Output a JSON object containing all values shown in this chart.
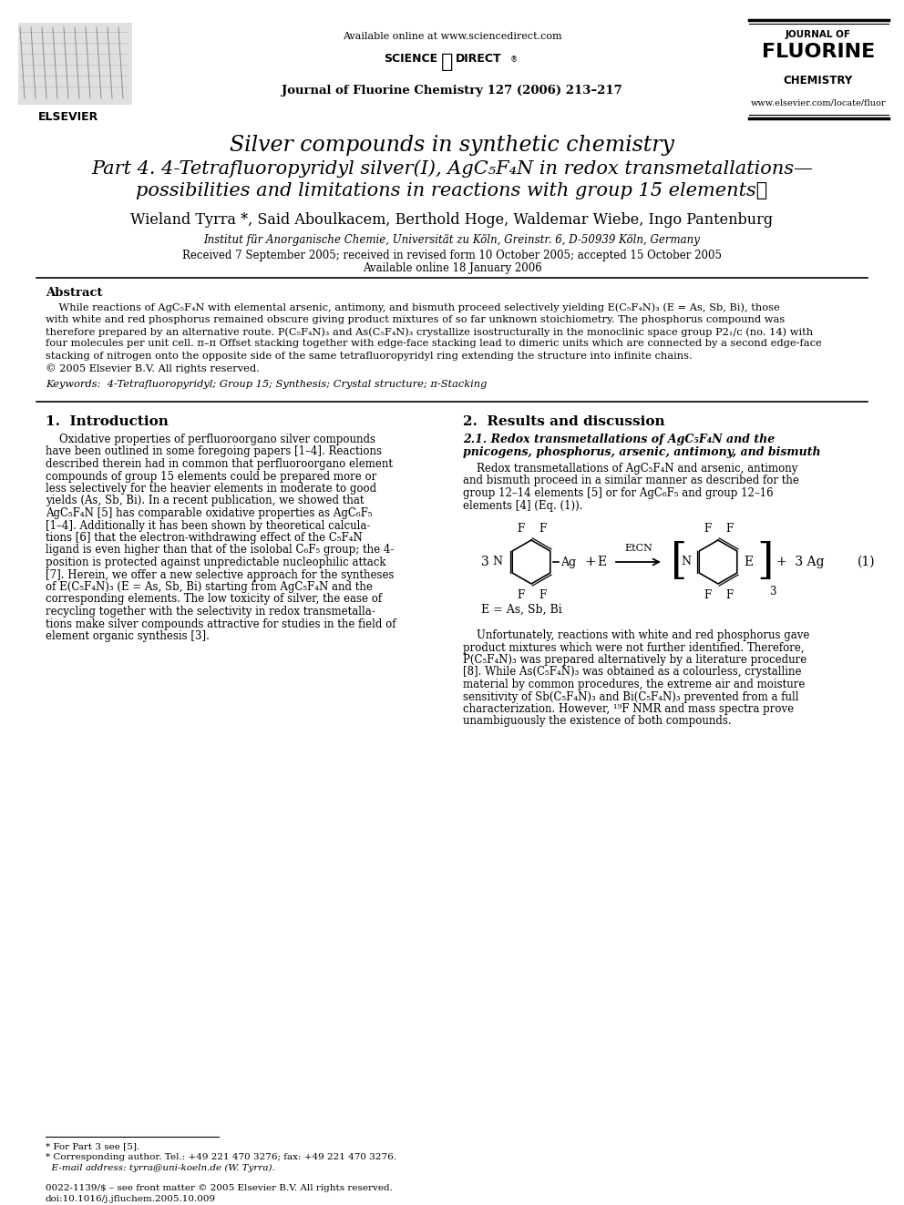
{
  "bg_color": "#ffffff",
  "title_line1": "Silver compounds in synthetic chemistry",
  "title_line2": "Part 4. 4-Tetrafluoropyridyl silver(I), AgC₅F₄N in redox transmetallations—",
  "title_line3": "possibilities and limitations in reactions with group 15 elements☆",
  "authors": "Wieland Tyrra *, Said Aboulkacem, Berthold Hoge, Waldemar Wiebe, Ingo Pantenburg",
  "affiliation": "Institut für Anorganische Chemie, Universität zu Köln, Greinstr. 6, D-50939 Köln, Germany",
  "received": "Received 7 September 2005; received in revised form 10 October 2005; accepted 15 October 2005",
  "available_date": "Available online 18 January 2006",
  "journal_header": "Journal of Fluorine Chemistry 127 (2006) 213–217",
  "available_online": "Available online at www.sciencedirect.com",
  "www_link": "www.elsevier.com/locate/fluor",
  "elsevier_text": "ELSEVIER",
  "abstract_title": "Abstract",
  "abstract_text1": "    While reactions of AgC₅F₄N with elemental arsenic, antimony, and bismuth proceed selectively yielding E(C₅F₄N)₃ (E = As, Sb, Bi), those",
  "abstract_text2": "with white and red phosphorus remained obscure giving product mixtures of so far unknown stoichiometry. The phosphorus compound was",
  "abstract_text3": "therefore prepared by an alternative route. P(C₅F₄N)₃ and As(C₅F₄N)₃ crystallize isostructurally in the monoclinic space group P2₁/c (no. 14) with",
  "abstract_text4": "four molecules per unit cell. π–π Offset stacking together with edge-face stacking lead to dimeric units which are connected by a second edge-face",
  "abstract_text5": "stacking of nitrogen onto the opposite side of the same tetrafluoropyridyl ring extending the structure into infinite chains.",
  "abstract_text6": "© 2005 Elsevier B.V. All rights reserved.",
  "keywords": "Keywords:  4-Tetrafluoropyridyl; Group 15; Synthesis; Crystal structure; π-Stacking",
  "section1_title": "1.  Introduction",
  "sec1_t1": "    Oxidative properties of perfluoroorgano silver compounds",
  "sec1_t2": "have been outlined in some foregoing papers [1–4]. Reactions",
  "sec1_t3": "described therein had in common that perfluoroorgano element",
  "sec1_t4": "compounds of group 15 elements could be prepared more or",
  "sec1_t5": "less selectively for the heavier elements in moderate to good",
  "sec1_t6": "yields (As, Sb, Bi). In a recent publication, we showed that",
  "sec1_t7": "AgC₅F₄N [5] has comparable oxidative properties as AgC₆F₅",
  "sec1_t8": "[1–4]. Additionally it has been shown by theoretical calcula-",
  "sec1_t9": "tions [6] that the electron-withdrawing effect of the C₅F₄N",
  "sec1_t10": "ligand is even higher than that of the isolobal C₆F₅ group; the 4-",
  "sec1_t11": "position is protected against unpredictable nucleophilic attack",
  "sec1_t12": "[7]. Herein, we offer a new selective approach for the syntheses",
  "sec1_t13": "of E(C₅F₄N)₃ (E = As, Sb, Bi) starting from AgC₅F₄N and the",
  "sec1_t14": "corresponding elements. The low toxicity of silver, the ease of",
  "sec1_t15": "recycling together with the selectivity in redox transmetalla-",
  "sec1_t16": "tions make silver compounds attractive for studies in the field of",
  "sec1_t17": "element organic synthesis [3].",
  "section2_title": "2.  Results and discussion",
  "sub21_t1": "2.1. Redox transmetallations of AgC₅F₄N and the",
  "sub21_t2": "pnicogens, phosphorus, arsenic, antimony, and bismuth",
  "sec2_t1": "    Redox transmetallations of AgC₅F₄N and arsenic, antimony",
  "sec2_t2": "and bismuth proceed in a similar manner as described for the",
  "sec2_t3": "group 12–14 elements [5] or for AgC₆F₅ and group 12–16",
  "sec2_t4": "elements [4] (Eq. (1)).",
  "sec2_t5": "    Unfortunately, reactions with white and red phosphorus gave",
  "sec2_t6": "product mixtures which were not further identified. Therefore,",
  "sec2_t7": "P(C₅F₄N)₃ was prepared alternatively by a literature procedure",
  "sec2_t8": "[8]. While As(C₅F₄N)₃ was obtained as a colourless, crystalline",
  "sec2_t9": "material by common procedures, the extreme air and moisture",
  "sec2_t10": "sensitivity of Sb(C₅F₄N)₃ and Bi(C₅F₄N)₃ prevented from a full",
  "sec2_t11": "characterization. However, ¹⁹F NMR and mass spectra prove",
  "sec2_t12": "unambiguously the existence of both compounds.",
  "footnote1": "* For Part 3 see [5].",
  "footnote2": "* Corresponding author. Tel.: +49 221 470 3276; fax: +49 221 470 3276.",
  "footnote3": "  E-mail address: tyrra@uni-koeln.de (W. Tyrra).",
  "footer_left": "0022-1139/$ – see front matter © 2005 Elsevier B.V. All rights reserved.",
  "footer_doi": "doi:10.1016/j.jfluchem.2005.10.009",
  "eq_label": "(1)",
  "eq_e_label": "E = As, Sb, Bi"
}
